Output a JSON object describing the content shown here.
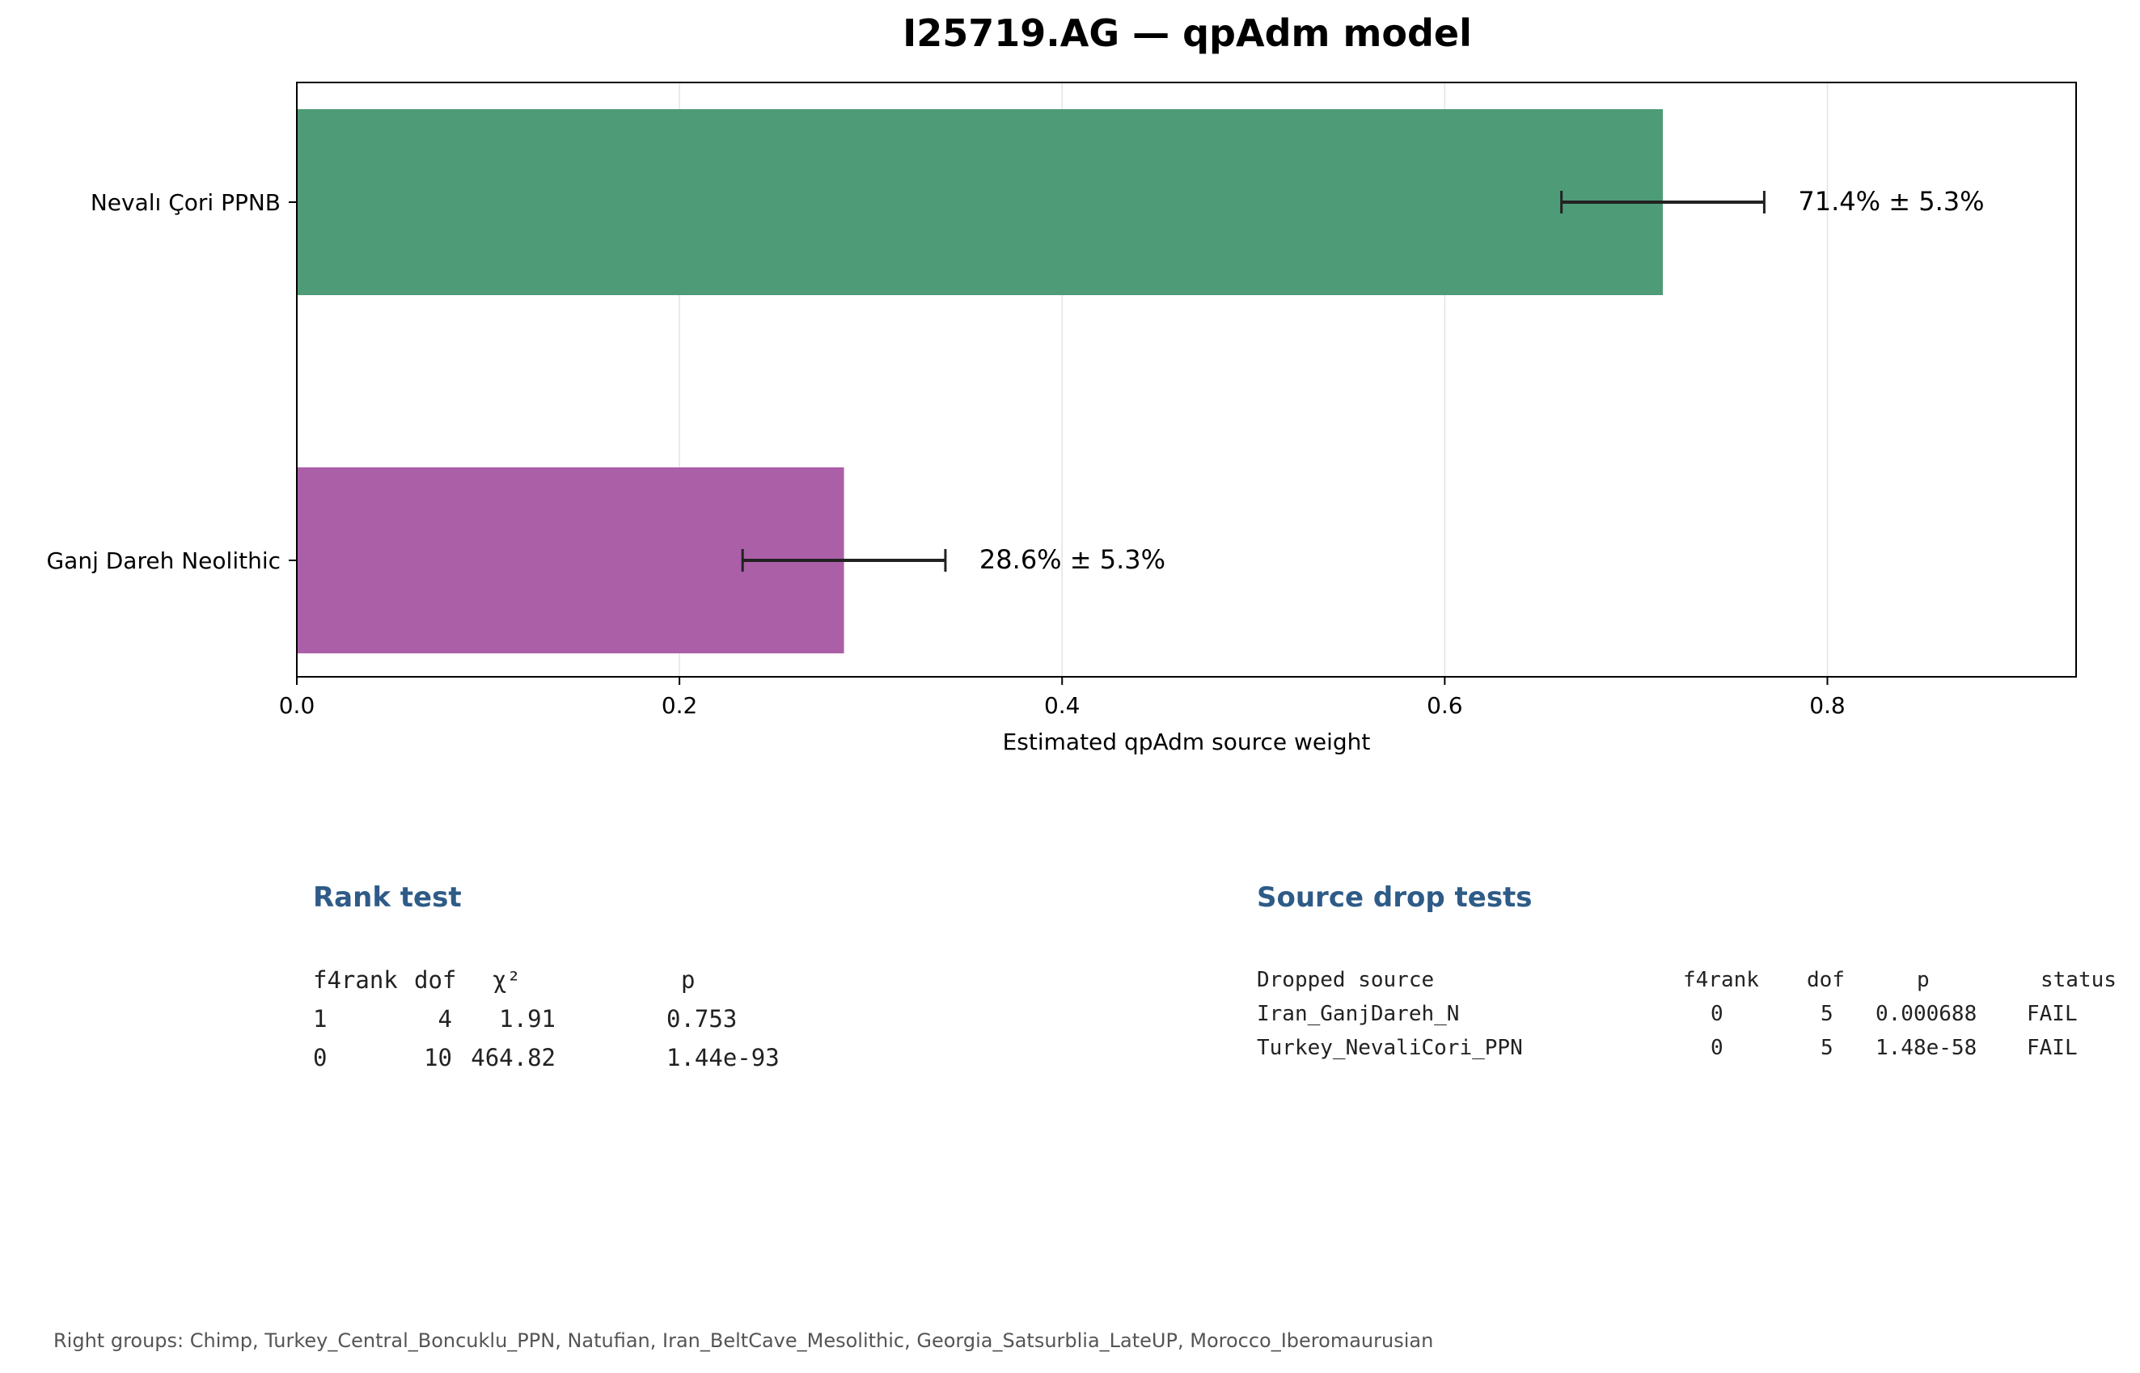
{
  "chart_data": {
    "type": "bar",
    "orientation": "horizontal",
    "title": "I25719.AG — qpAdm model",
    "xlabel": "Estimated qpAdm source weight",
    "ylabel": "",
    "xlim": [
      0,
      0.93
    ],
    "xticks": [
      "0.0",
      "0.2",
      "0.4",
      "0.6",
      "0.8"
    ],
    "xtick_values": [
      0,
      0.2,
      0.4,
      0.6,
      0.8
    ],
    "grid": "vertical",
    "categories": [
      "Nevalı Çori PPNB",
      "Ganj Dareh Neolithic"
    ],
    "values": [
      0.714,
      0.286
    ],
    "errors": [
      0.053,
      0.053
    ],
    "value_labels": [
      "71.4% ± 5.3%",
      "28.6% ± 5.3%"
    ],
    "colors": [
      "#4e9b78",
      "#ab5fa7"
    ]
  },
  "rank_test": {
    "title": "Rank test",
    "headers": [
      "f4rank",
      "dof",
      "χ²",
      "p"
    ],
    "rows": [
      [
        "1",
        "4",
        "1.91",
        "0.753"
      ],
      [
        "0",
        "10",
        "464.82",
        "1.44e-93"
      ]
    ]
  },
  "drop_tests": {
    "title": "Source drop tests",
    "headers": [
      "Dropped source",
      "f4rank",
      "dof",
      "p",
      "status"
    ],
    "rows": [
      [
        "Iran_GanjDareh_N",
        "0",
        "5",
        "0.000688",
        "FAIL"
      ],
      [
        "Turkey_NevaliCori_PPN",
        "0",
        "5",
        "1.48e-58",
        "FAIL"
      ]
    ]
  },
  "footer": "Right groups: Chimp, Turkey_Central_Boncuklu_PPN, Natufian, Iran_BeltCave_Mesolithic, Georgia_Satsurblia_LateUP, Morocco_Iberomaurusian",
  "colors": {
    "heading": "#2e5b87"
  }
}
